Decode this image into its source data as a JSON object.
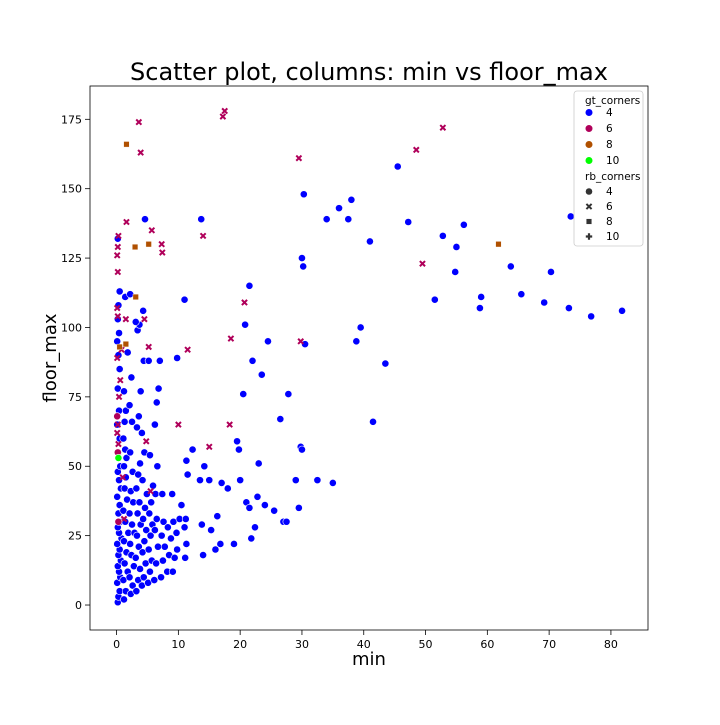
{
  "chart_data": {
    "type": "scatter",
    "title": "Scatter plot, columns: min vs floor_max",
    "xlabel": "min",
    "ylabel": "floor_max",
    "xlim": [
      -4.3,
      86
    ],
    "ylim": [
      -9,
      187
    ],
    "xticks": [
      "0",
      "10",
      "20",
      "30",
      "40",
      "50",
      "60",
      "70",
      "80"
    ],
    "yticks": [
      "0",
      "25",
      "50",
      "75",
      "100",
      "125",
      "150",
      "175"
    ],
    "grid": false,
    "legend_position": "top-right",
    "hue_legend": {
      "title": "gt_corners",
      "items": [
        {
          "label": "4",
          "color": "#0000ff"
        },
        {
          "label": "6",
          "color": "#b0005a"
        },
        {
          "label": "8",
          "color": "#b05000"
        },
        {
          "label": "10",
          "color": "#00ff00"
        }
      ]
    },
    "style_legend": {
      "title": "rb_corners",
      "items": [
        {
          "label": "4",
          "marker": "circle"
        },
        {
          "label": "6",
          "marker": "x"
        },
        {
          "label": "8",
          "marker": "square"
        },
        {
          "label": "10",
          "marker": "plus"
        }
      ]
    },
    "series": [
      {
        "gt": "4",
        "rb": "4",
        "points": [
          [
            0.2,
            1
          ],
          [
            0.3,
            3
          ],
          [
            0.5,
            5
          ],
          [
            0.1,
            8
          ],
          [
            0.6,
            10
          ],
          [
            0.4,
            12
          ],
          [
            0.2,
            14
          ],
          [
            0.7,
            16
          ],
          [
            0.3,
            18
          ],
          [
            0.5,
            20
          ],
          [
            0.1,
            22
          ],
          [
            0.8,
            24
          ],
          [
            0.4,
            26
          ],
          [
            0.2,
            28
          ],
          [
            0.6,
            30
          ],
          [
            0.3,
            33
          ],
          [
            0.5,
            36
          ],
          [
            0.1,
            39
          ],
          [
            0.7,
            42
          ],
          [
            0.4,
            45
          ],
          [
            0.2,
            48
          ],
          [
            0.6,
            50
          ],
          [
            0.3,
            55
          ],
          [
            0.5,
            60
          ],
          [
            0.1,
            65
          ],
          [
            0.4,
            70
          ],
          [
            0.2,
            78
          ],
          [
            0.5,
            85
          ],
          [
            0.3,
            90
          ],
          [
            0.1,
            95
          ],
          [
            0.4,
            98
          ],
          [
            0.2,
            103
          ],
          [
            0.3,
            108
          ],
          [
            0.5,
            113
          ],
          [
            0.2,
            132
          ],
          [
            1.2,
            2
          ],
          [
            1.5,
            5
          ],
          [
            1.1,
            9
          ],
          [
            1.8,
            12
          ],
          [
            1.3,
            15
          ],
          [
            1.6,
            19
          ],
          [
            1.2,
            23
          ],
          [
            1.9,
            26
          ],
          [
            1.4,
            30
          ],
          [
            1.1,
            34
          ],
          [
            1.7,
            38
          ],
          [
            1.3,
            42
          ],
          [
            1.5,
            46
          ],
          [
            1.2,
            50
          ],
          [
            1.6,
            53
          ],
          [
            1.4,
            56
          ],
          [
            1.1,
            60
          ],
          [
            1.3,
            66
          ],
          [
            1.5,
            70
          ],
          [
            1.2,
            77
          ],
          [
            1.8,
            91
          ],
          [
            1.4,
            111
          ],
          [
            2.3,
            4
          ],
          [
            2.6,
            7
          ],
          [
            2.1,
            10
          ],
          [
            2.8,
            14
          ],
          [
            2.4,
            18
          ],
          [
            2.2,
            22
          ],
          [
            2.9,
            26
          ],
          [
            2.5,
            29
          ],
          [
            2.1,
            33
          ],
          [
            2.7,
            37
          ],
          [
            2.3,
            41
          ],
          [
            2.6,
            48
          ],
          [
            2.2,
            55
          ],
          [
            2.5,
            66
          ],
          [
            2.1,
            72
          ],
          [
            2.4,
            82
          ],
          [
            2.2,
            112
          ],
          [
            3.2,
            5
          ],
          [
            3.5,
            9
          ],
          [
            3.8,
            13
          ],
          [
            3.1,
            17
          ],
          [
            3.6,
            21
          ],
          [
            3.3,
            25
          ],
          [
            3.9,
            29
          ],
          [
            3.4,
            33
          ],
          [
            3.7,
            37
          ],
          [
            3.2,
            42
          ],
          [
            3.5,
            47
          ],
          [
            3.8,
            51
          ],
          [
            3.3,
            64
          ],
          [
            3.6,
            68
          ],
          [
            3.9,
            77
          ],
          [
            3.4,
            99
          ],
          [
            3.7,
            101
          ],
          [
            3.1,
            102
          ],
          [
            4.1,
            7
          ],
          [
            4.4,
            10
          ],
          [
            4.7,
            15
          ],
          [
            4.2,
            19
          ],
          [
            4.5,
            23
          ],
          [
            4.8,
            27
          ],
          [
            4.3,
            31
          ],
          [
            4.6,
            35
          ],
          [
            4.9,
            40
          ],
          [
            4.2,
            45
          ],
          [
            4.5,
            55
          ],
          [
            4.1,
            62
          ],
          [
            4.4,
            88
          ],
          [
            4.3,
            106
          ],
          [
            4.6,
            139
          ],
          [
            5.1,
            8
          ],
          [
            5.4,
            12
          ],
          [
            5.7,
            16
          ],
          [
            5.2,
            20
          ],
          [
            5.5,
            25
          ],
          [
            5.8,
            29
          ],
          [
            5.3,
            33
          ],
          [
            5.6,
            37
          ],
          [
            5.9,
            43
          ],
          [
            5.4,
            54
          ],
          [
            5.2,
            88
          ],
          [
            6.1,
            9
          ],
          [
            6.4,
            15
          ],
          [
            6.7,
            21
          ],
          [
            6.2,
            27
          ],
          [
            6.5,
            31
          ],
          [
            6.3,
            40
          ],
          [
            6.6,
            50
          ],
          [
            6.2,
            65
          ],
          [
            6.5,
            73
          ],
          [
            6.8,
            78
          ],
          [
            7.0,
            88
          ],
          [
            7.2,
            10
          ],
          [
            7.5,
            16
          ],
          [
            7.8,
            21
          ],
          [
            7.3,
            25
          ],
          [
            7.6,
            30
          ],
          [
            7.4,
            40
          ],
          [
            8.2,
            12
          ],
          [
            8.5,
            18
          ],
          [
            8.8,
            24
          ],
          [
            8.3,
            28
          ],
          [
            9.0,
            40
          ],
          [
            9.1,
            12
          ],
          [
            9.4,
            17
          ],
          [
            9.7,
            26
          ],
          [
            9.2,
            30
          ],
          [
            9.8,
            20
          ],
          [
            9.8,
            89
          ],
          [
            10.2,
            31
          ],
          [
            10.5,
            36
          ],
          [
            11.1,
            17
          ],
          [
            11.3,
            22
          ],
          [
            11.0,
            28
          ],
          [
            11.2,
            31
          ],
          [
            11.5,
            47
          ],
          [
            11.3,
            52
          ],
          [
            11.0,
            110
          ],
          [
            12.3,
            56
          ],
          [
            13.5,
            45
          ],
          [
            13.8,
            29
          ],
          [
            14.0,
            18
          ],
          [
            14.2,
            50
          ],
          [
            13.7,
            139
          ],
          [
            15.0,
            45
          ],
          [
            15.3,
            27
          ],
          [
            16.0,
            20
          ],
          [
            16.3,
            32
          ],
          [
            16.8,
            22
          ],
          [
            17.0,
            44
          ],
          [
            18.0,
            42
          ],
          [
            19.0,
            22
          ],
          [
            19.5,
            59
          ],
          [
            19.8,
            56
          ],
          [
            20.0,
            45
          ],
          [
            20.5,
            76
          ],
          [
            20.8,
            101
          ],
          [
            21.0,
            37
          ],
          [
            21.5,
            35
          ],
          [
            21.5,
            115
          ],
          [
            21.8,
            24
          ],
          [
            22.0,
            88
          ],
          [
            22.4,
            28
          ],
          [
            22.8,
            39
          ],
          [
            23.0,
            51
          ],
          [
            23.5,
            83
          ],
          [
            24.0,
            36
          ],
          [
            24.5,
            95
          ],
          [
            25.5,
            34
          ],
          [
            26.5,
            67
          ],
          [
            27.0,
            30
          ],
          [
            27.5,
            30
          ],
          [
            27.8,
            76
          ],
          [
            29.0,
            45
          ],
          [
            29.5,
            35
          ],
          [
            29.8,
            57
          ],
          [
            30.0,
            56
          ],
          [
            30.0,
            125
          ],
          [
            30.2,
            122
          ],
          [
            30.3,
            148
          ],
          [
            30.5,
            94
          ],
          [
            32.5,
            45
          ],
          [
            34.0,
            139
          ],
          [
            35.0,
            44
          ],
          [
            36.0,
            143
          ],
          [
            37.5,
            139
          ],
          [
            38.0,
            146
          ],
          [
            38.8,
            95
          ],
          [
            39.5,
            100
          ],
          [
            41.0,
            131
          ],
          [
            41.5,
            66
          ],
          [
            43.5,
            87
          ],
          [
            45.5,
            158
          ],
          [
            47.2,
            138
          ],
          [
            51.5,
            110
          ],
          [
            52.8,
            133
          ],
          [
            54.8,
            120
          ],
          [
            55.0,
            129
          ],
          [
            56.2,
            137
          ],
          [
            58.8,
            107
          ],
          [
            59.0,
            111
          ],
          [
            63.8,
            122
          ],
          [
            65.5,
            112
          ],
          [
            69.2,
            109
          ],
          [
            70.3,
            120
          ],
          [
            73.2,
            107
          ],
          [
            73.5,
            140
          ],
          [
            76.8,
            104
          ],
          [
            81.8,
            106
          ]
        ]
      },
      {
        "gt": "6",
        "rb": "6",
        "points": [
          [
            0.1,
            89
          ],
          [
            0.2,
            104
          ],
          [
            0.1,
            107
          ],
          [
            0.2,
            120
          ],
          [
            0.1,
            126
          ],
          [
            0.2,
            129
          ],
          [
            0.3,
            133
          ],
          [
            0.2,
            65
          ],
          [
            0.1,
            62
          ],
          [
            0.3,
            58
          ],
          [
            0.4,
            75
          ],
          [
            0.6,
            81
          ],
          [
            0.8,
            92
          ],
          [
            1.0,
            46
          ],
          [
            1.2,
            31
          ],
          [
            1.5,
            103
          ],
          [
            1.6,
            138
          ],
          [
            3.6,
            174
          ],
          [
            3.9,
            163
          ],
          [
            4.5,
            103
          ],
          [
            4.8,
            59
          ],
          [
            5.2,
            93
          ],
          [
            5.5,
            41
          ],
          [
            5.7,
            135
          ],
          [
            7.3,
            130
          ],
          [
            7.4,
            127
          ],
          [
            10.0,
            65
          ],
          [
            11.5,
            92
          ],
          [
            14.0,
            133
          ],
          [
            15.0,
            57
          ],
          [
            17.2,
            176
          ],
          [
            17.5,
            178
          ],
          [
            18.3,
            65
          ],
          [
            18.5,
            96
          ],
          [
            20.7,
            109
          ],
          [
            29.5,
            161
          ],
          [
            29.8,
            95
          ],
          [
            48.5,
            164
          ],
          [
            49.5,
            123
          ],
          [
            52.8,
            172
          ]
        ]
      },
      {
        "gt": "6",
        "rb": "4",
        "points": [
          [
            0.1,
            68
          ],
          [
            0.2,
            55
          ],
          [
            0.3,
            30
          ]
        ]
      },
      {
        "gt": "8",
        "rb": "8",
        "points": [
          [
            0.5,
            93
          ],
          [
            1.5,
            94
          ],
          [
            1.6,
            166
          ],
          [
            3.0,
            129
          ],
          [
            3.1,
            111
          ],
          [
            5.2,
            130
          ],
          [
            61.8,
            130
          ]
        ]
      },
      {
        "gt": "10",
        "rb": "4",
        "points": [
          [
            0.3,
            53
          ]
        ]
      }
    ]
  }
}
